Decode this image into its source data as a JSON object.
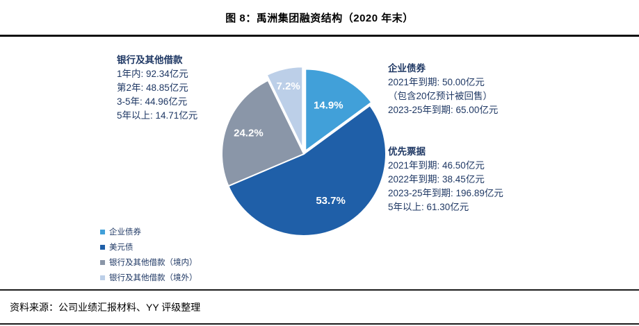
{
  "figure": {
    "title": "图 8：禹洲集团融资结构（2020 年末）",
    "source": "资料来源：公司业绩汇报材料、YY 评级整理"
  },
  "colors": {
    "annotation_text": "#1F3864",
    "slice_border": "#ffffff",
    "divider": "#1a1a1a"
  },
  "chart_data": {
    "type": "pie",
    "title": "图 8：禹洲集团融资结构（2020 年末）",
    "direction": "clockwise",
    "start_angle_deg": 0,
    "legend_position": "bottom-left",
    "slices": [
      {
        "id": "corporate-bonds",
        "label": "企业债券",
        "value": 14.9,
        "pct_label": "14.9%",
        "color": "#41A0D9",
        "text_color": "#ffffff",
        "explode": 5,
        "label_r": 0.62
      },
      {
        "id": "usd-bonds",
        "label": "美元债",
        "value": 53.7,
        "pct_label": "53.7%",
        "color": "#1F5FA8",
        "text_color": "#ffffff",
        "explode": 0,
        "label_r": 0.66
      },
      {
        "id": "bank-domestic",
        "label": "银行及其他借款（境内）",
        "value": 24.2,
        "pct_label": "24.2%",
        "color": "#8A96A8",
        "text_color": "#ffffff",
        "explode": 0,
        "label_r": 0.72
      },
      {
        "id": "bank-offshore",
        "label": "银行及其他借款（境外）",
        "value": 7.2,
        "pct_label": "7.2%",
        "color": "#BCCFE8",
        "text_color": "#ffffff",
        "explode": 8,
        "label_r": 0.78
      }
    ],
    "callouts": {
      "bank": {
        "header": "银行及其他借款",
        "lines": [
          "1年内: 92.34亿元",
          "第2年: 48.85亿元",
          "3-5年: 44.96亿元",
          "5年以上: 14.71亿元"
        ]
      },
      "corporate_bonds": {
        "header": "企业债券",
        "lines": [
          "2021年到期: 50.00亿元",
          "（包含20亿预计被回售）",
          "2023-25年到期: 65.00亿元"
        ]
      },
      "senior_notes": {
        "header": "优先票据",
        "lines": [
          "2021年到期: 46.50亿元",
          "2022年到期: 38.45亿元",
          "2023-25年到期: 196.89亿元",
          "5年以上: 61.30亿元"
        ]
      }
    }
  }
}
